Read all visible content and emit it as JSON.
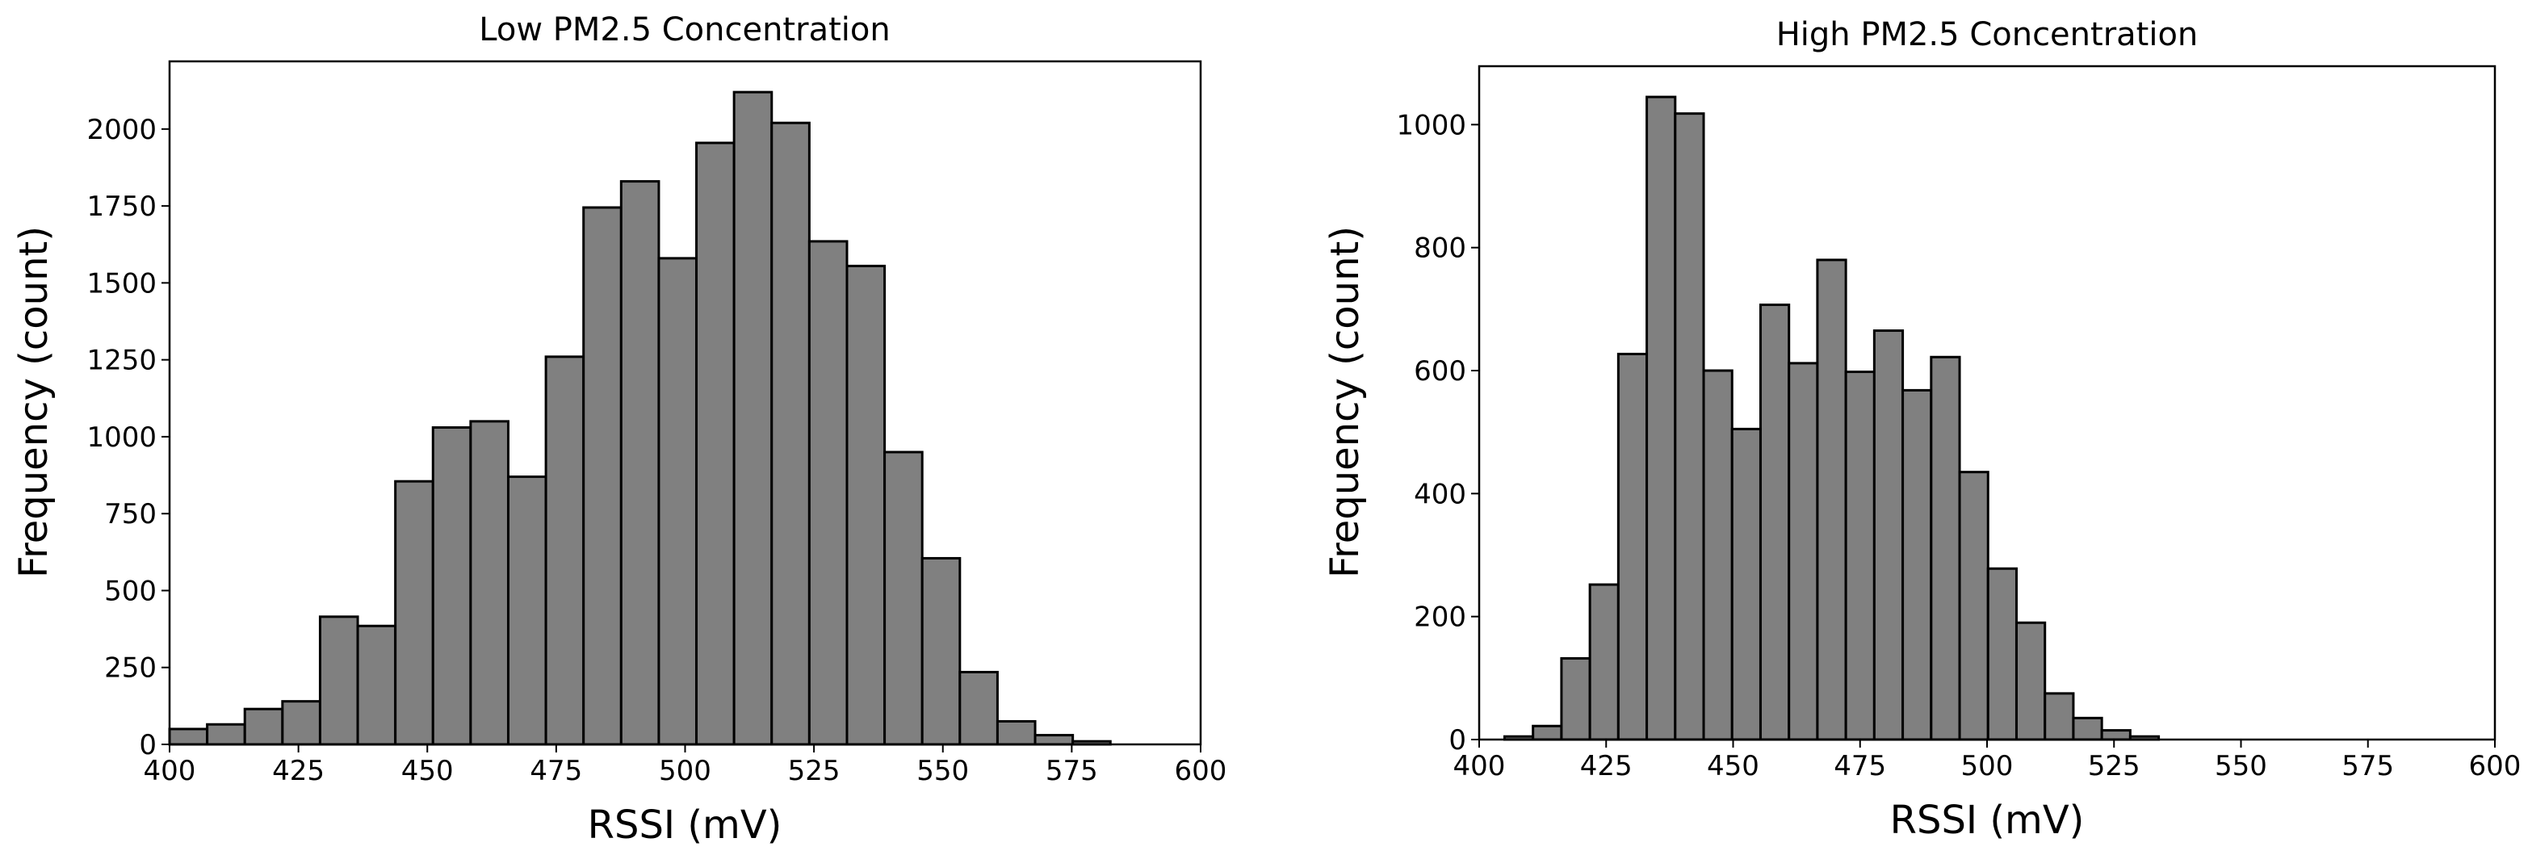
{
  "figure": {
    "bar_color": "#808080",
    "edge_color": "#000000",
    "background": "#ffffff"
  },
  "chart_data": [
    {
      "type": "bar",
      "title": "Low PM2.5 Concentration",
      "xlabel": "RSSI (mV)",
      "ylabel": "Frequency (count)",
      "xlim": [
        400,
        600
      ],
      "ylim": [
        0,
        2220
      ],
      "xticks": [
        400,
        425,
        450,
        475,
        500,
        525,
        550,
        575,
        600
      ],
      "yticks": [
        0,
        250,
        500,
        750,
        1000,
        1250,
        1500,
        1750,
        2000
      ],
      "grid": false,
      "bin_edges": [
        400,
        407.3,
        414.6,
        421.9,
        429.2,
        436.5,
        443.8,
        451.1,
        458.4,
        465.7,
        473.0,
        480.3,
        487.6,
        494.9,
        502.2,
        509.5,
        516.8,
        524.1,
        531.4,
        538.7,
        546.0,
        553.3,
        560.6,
        567.9,
        575.2,
        582.5
      ],
      "values": [
        50,
        65,
        115,
        140,
        415,
        385,
        855,
        1030,
        1050,
        870,
        1260,
        1745,
        1830,
        1580,
        1955,
        2120,
        2020,
        1635,
        1555,
        950,
        605,
        235,
        75,
        30,
        10
      ]
    },
    {
      "type": "bar",
      "title": "High PM2.5 Concentration",
      "xlabel": "RSSI (mV)",
      "ylabel": "Frequency (count)",
      "xlim": [
        400,
        600
      ],
      "ylim": [
        0,
        1095
      ],
      "xticks": [
        400,
        425,
        450,
        475,
        500,
        525,
        550,
        575,
        600
      ],
      "yticks": [
        0,
        200,
        400,
        600,
        800,
        1000
      ],
      "grid": false,
      "bin_edges": [
        405.0,
        410.6,
        416.2,
        421.8,
        427.4,
        433.0,
        438.6,
        444.2,
        449.8,
        455.4,
        461.0,
        466.6,
        472.2,
        477.8,
        483.4,
        489.0,
        494.6,
        500.2,
        505.8,
        511.4,
        517.0,
        522.6,
        528.2,
        533.8
      ],
      "values": [
        5,
        22,
        132,
        252,
        627,
        1045,
        1018,
        600,
        505,
        707,
        612,
        780,
        598,
        665,
        568,
        622,
        435,
        278,
        190,
        75,
        35,
        15,
        5
      ]
    }
  ]
}
